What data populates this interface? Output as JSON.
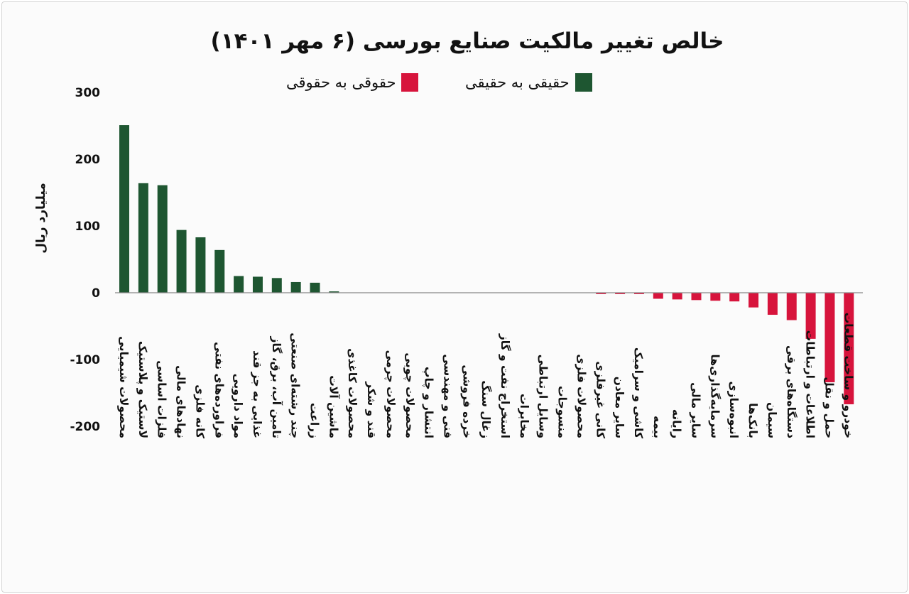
{
  "title": "خالص تغییر مالکیت صنایع بورسی (۶ مهر ۱۴۰۱)",
  "legend": [
    {
      "label": "حقیقی به حقیقی",
      "color": "#1e5631"
    },
    {
      "label": "حقوقی به حقوقی",
      "color": "#d7143c"
    }
  ],
  "colors": {
    "positive": "#1e5631",
    "negative": "#d7143c",
    "axis": "#888888",
    "text": "#111111"
  },
  "chart_data": {
    "type": "bar",
    "title": "خالص تغییر مالکیت صنایع بورسی (۶ مهر ۱۴۰۱)",
    "xlabel": "",
    "ylabel": "میلیارد ریال",
    "ylim": [
      -200,
      300
    ],
    "yticks": [
      300,
      200,
      100,
      0,
      -100,
      -200
    ],
    "ytick_labels": [
      "300",
      "200",
      "100",
      "0",
      "-100",
      "-200"
    ],
    "grid": false,
    "legend_position": "top-center",
    "categories": [
      "محصولات شیمیایی",
      "لاستیک و پلاستیک",
      "فلزات اساسی",
      "نهادهای مالی",
      "کانه فلزی",
      "فراورده‌های نفتی",
      "مواد دارویی",
      "غذایی به جز قند",
      "تامین آب، برق، گاز",
      "چند رشته‌ای صنعتی",
      "زراعت",
      "ماشین آلات",
      "محصولات کاغذی",
      "قند و شکر",
      "محصولات چرمی",
      "محصولات چوبی",
      "انتشار و چاپ",
      "فنی و مهندسی",
      "خرده فروشی",
      "زغال سنگ",
      "استخراج نفت و گاز",
      "مخابرات",
      "وسایل ارتباطی",
      "منسوجات",
      "محصولات فلزی",
      "کانی غیرفلزی",
      "سایر معادن",
      "کاشی و سرامیک",
      "بیمه",
      "رایانه",
      "سایر مالی",
      "سرمایه‌گذاری‌ها",
      "انبوه‌سازی",
      "بانک‌ها",
      "سیمان",
      "دستگاه‌های برقی",
      "اطلاعات و ارتباطات",
      "حمل و نقل",
      "خودرو و ساخت قطعات"
    ],
    "values": [
      251,
      164,
      161,
      94,
      83,
      64,
      25,
      24,
      22,
      16,
      15,
      2,
      0,
      0,
      0,
      0,
      0,
      0,
      0,
      0,
      0,
      0,
      0,
      0,
      0,
      -2,
      -2,
      -2,
      -9,
      -10,
      -11,
      -12,
      -13,
      -22,
      -33,
      -41,
      -69,
      -134,
      -167
    ]
  }
}
